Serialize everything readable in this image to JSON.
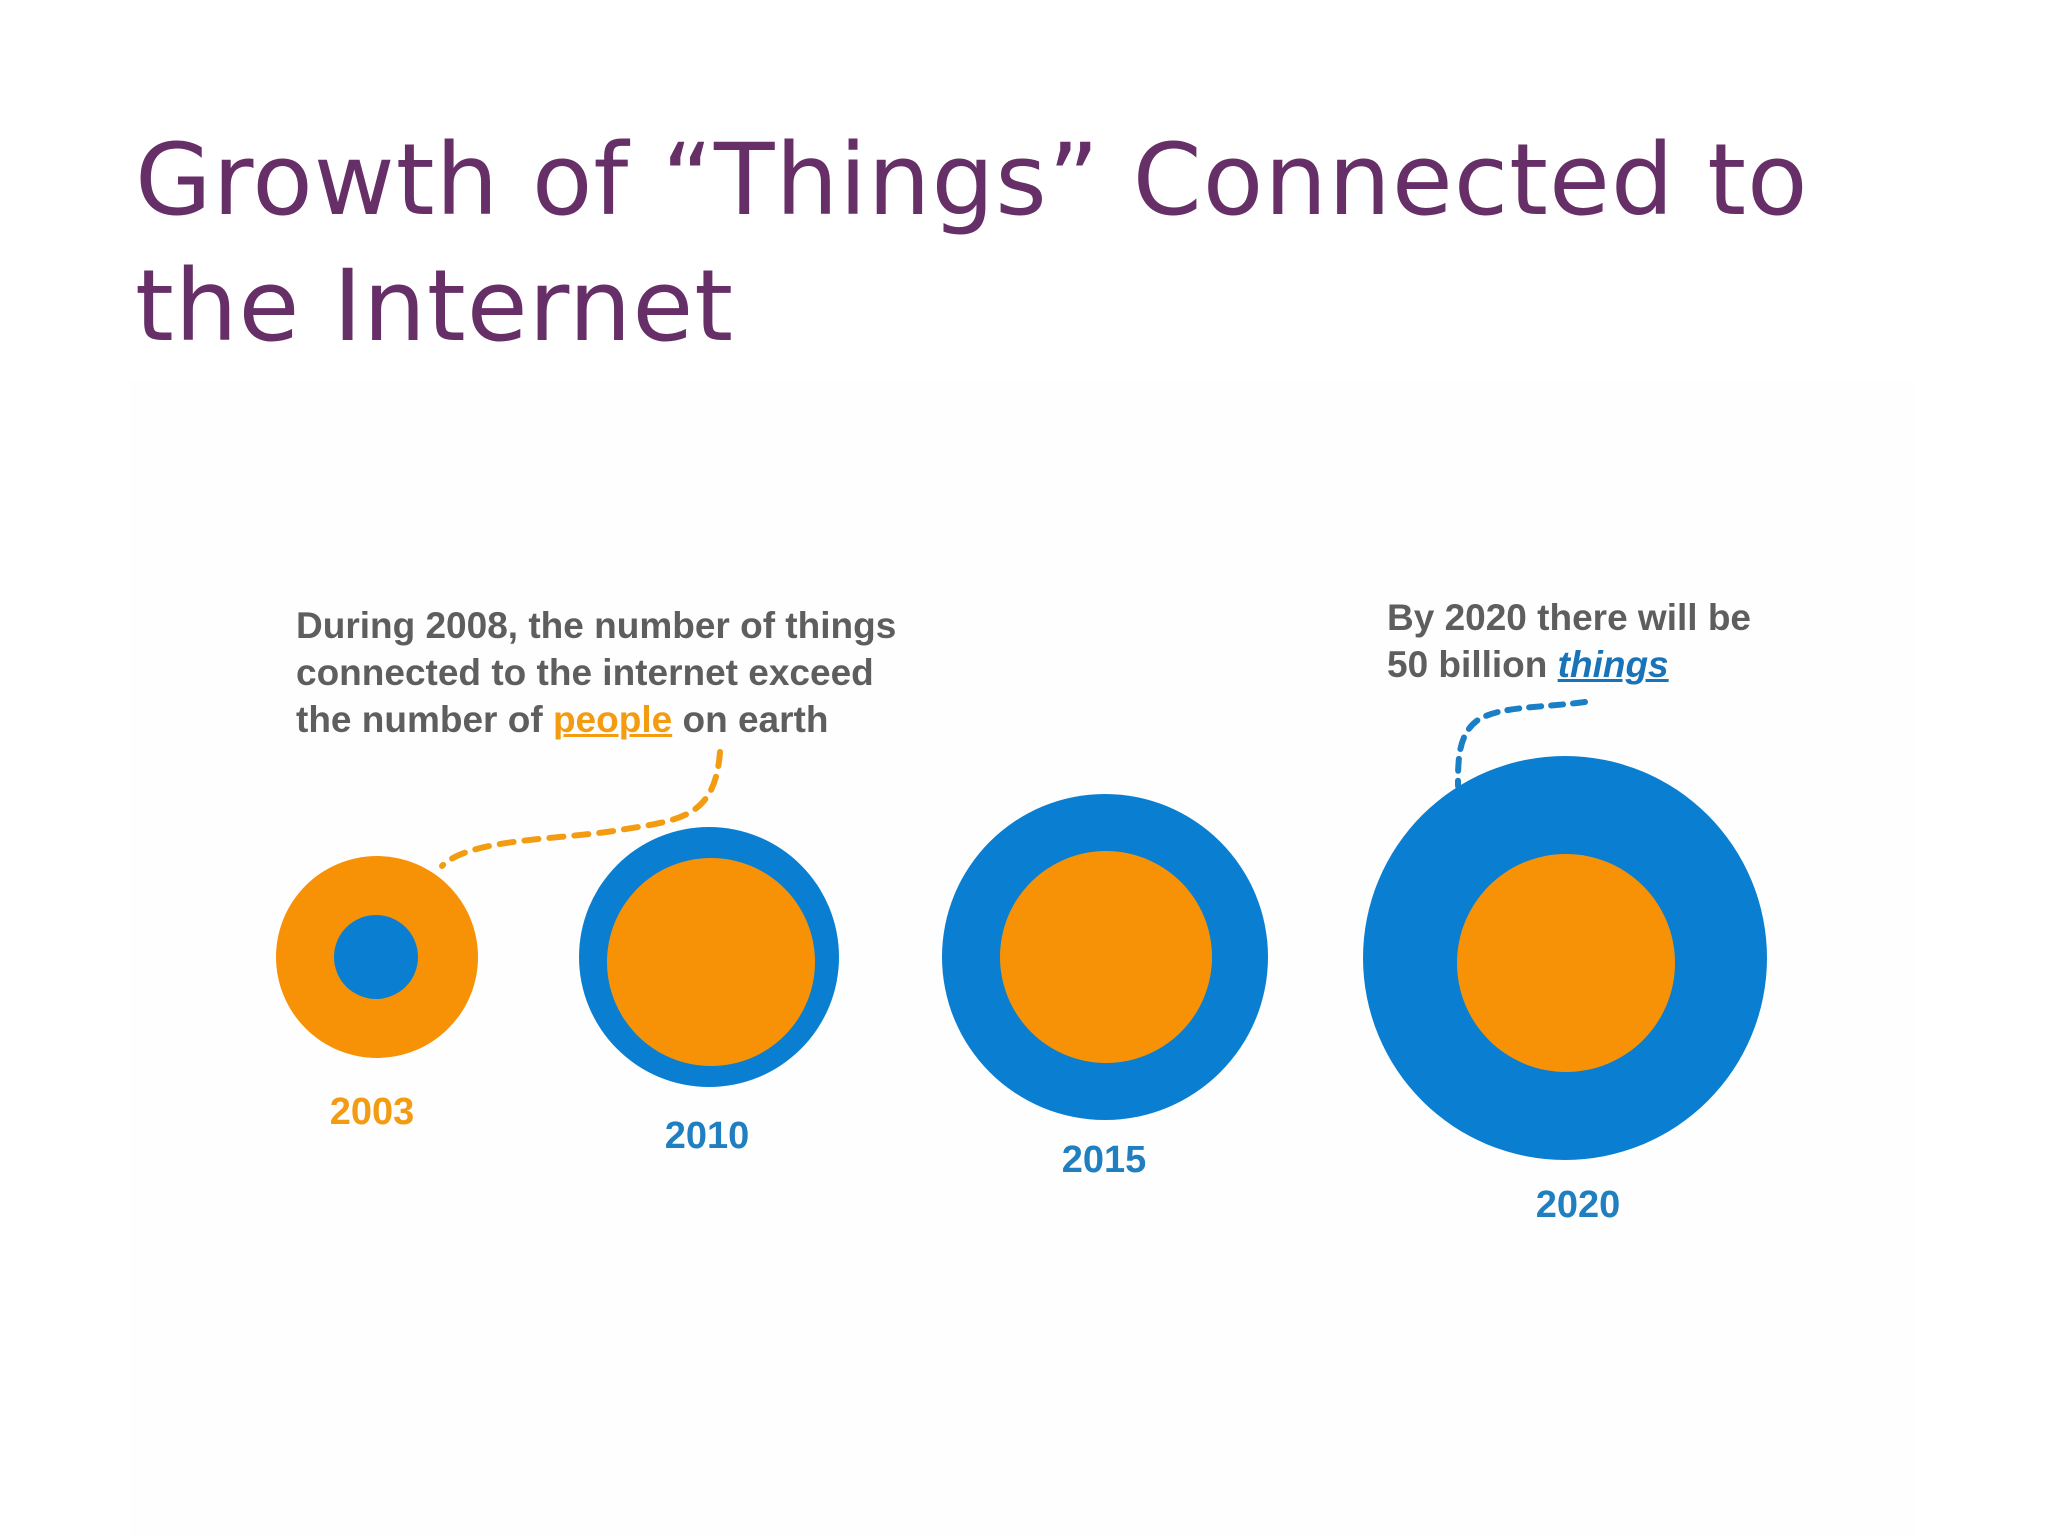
{
  "title": {
    "line1": "Growth of “Things” Connected to",
    "line2": "the Internet"
  },
  "callouts": {
    "left": {
      "line1": "During 2008, the number of things",
      "line2": "connected to the internet  exceed",
      "line3_before": "the number of ",
      "line3_highlight": "people",
      "line3_after": " on earth"
    },
    "right": {
      "line1": "By 2020 there will be",
      "line2_before": "50 billion ",
      "line2_highlight": "things"
    }
  },
  "years": [
    {
      "label": "2003",
      "color": "#F39C12"
    },
    {
      "label": "2010",
      "color": "#1F7FC1"
    },
    {
      "label": "2015",
      "color": "#1F7FC1"
    },
    {
      "label": "2020",
      "color": "#1F7FC1"
    }
  ],
  "colors": {
    "title": "#672F67",
    "things": "#0A7FD1",
    "people": "#F79207",
    "callout_text": "#5E5E5E"
  }
}
